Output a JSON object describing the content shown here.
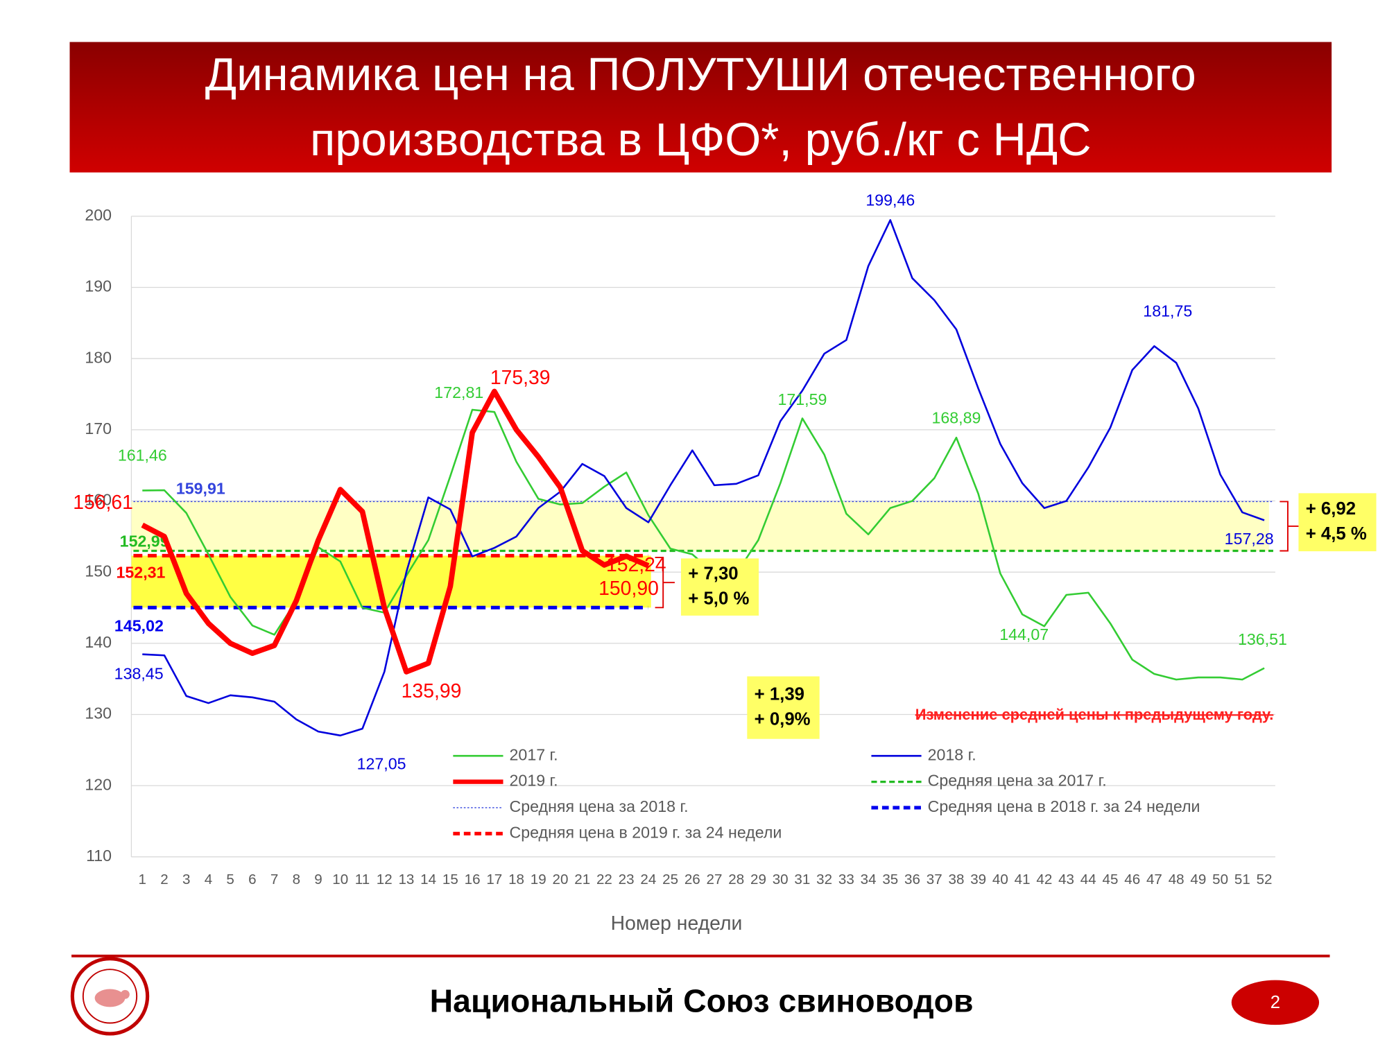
{
  "chart_data": {
    "type": "line",
    "title": [
      "Динамика цен на ПОЛУТУШИ отечественного",
      "производства в ЦФО*, руб./кг с НДС"
    ],
    "x_label": "Номер недели",
    "x": [
      1,
      2,
      3,
      4,
      5,
      6,
      7,
      8,
      9,
      10,
      11,
      12,
      13,
      14,
      15,
      16,
      17,
      18,
      19,
      20,
      21,
      22,
      23,
      24,
      25,
      26,
      27,
      28,
      29,
      30,
      31,
      32,
      33,
      34,
      35,
      36,
      37,
      38,
      39,
      40,
      41,
      42,
      43,
      44,
      45,
      46,
      47,
      48,
      49,
      50,
      51,
      52
    ],
    "xlim": [
      0.5,
      52.5
    ],
    "ylim": [
      110,
      200
    ],
    "yticks": [
      110,
      120,
      130,
      140,
      150,
      160,
      170,
      180,
      190,
      200
    ],
    "grid": true,
    "series": [
      {
        "name": "2017 г.",
        "color": "#33cc33",
        "style": "solid",
        "width": 2,
        "values": [
          161.46,
          161.5,
          158.3,
          152.5,
          146.5,
          142.5,
          141.2,
          146,
          153.5,
          151.5,
          145,
          144.3,
          149.5,
          154.5,
          163.5,
          172.81,
          172.5,
          165.5,
          160.3,
          159.5,
          159.7,
          162,
          164,
          158,
          153.3,
          152.5,
          149.8,
          149.8,
          154.5,
          162.5,
          171.59,
          166.5,
          158.2,
          155.3,
          159,
          160,
          163.2,
          168.89,
          161,
          149.8,
          144.07,
          142.4,
          146.8,
          147.1,
          142.8,
          137.7,
          135.7,
          134.9,
          135.2,
          135.2,
          134.9,
          136.51
        ],
        "value_labels": [
          "161,46",
          null,
          null,
          null,
          null,
          null,
          null,
          null,
          null,
          null,
          null,
          null,
          null,
          null,
          null,
          "172,81",
          null,
          null,
          null,
          null,
          null,
          null,
          null,
          null,
          null,
          null,
          null,
          null,
          null,
          null,
          "171,59",
          null,
          null,
          null,
          null,
          null,
          null,
          "168,89",
          null,
          null,
          "144,07",
          null,
          null,
          null,
          null,
          null,
          null,
          null,
          null,
          null,
          null,
          "136,51"
        ]
      },
      {
        "name": "2018 г.",
        "color": "#0000dd",
        "style": "solid",
        "width": 2,
        "values": [
          138.45,
          138.3,
          132.6,
          131.6,
          132.7,
          132.4,
          131.8,
          129.3,
          127.6,
          127.05,
          128,
          136,
          150,
          160.5,
          158.8,
          152.2,
          153.4,
          155,
          159,
          161.3,
          165.2,
          163.5,
          159,
          157,
          162.2,
          167.1,
          162.2,
          162.4,
          163.6,
          171.2,
          175.5,
          180.7,
          182.6,
          193,
          199.46,
          191.3,
          188.2,
          184.1,
          175.8,
          168,
          162.5,
          159,
          160,
          164.7,
          170.3,
          178.4,
          181.75,
          179.4,
          173,
          163.7,
          158.4,
          157.28
        ],
        "value_labels": [
          "138,45",
          null,
          null,
          null,
          null,
          null,
          null,
          null,
          null,
          "127,05",
          null,
          null,
          null,
          null,
          null,
          null,
          null,
          null,
          null,
          null,
          null,
          null,
          null,
          null,
          null,
          null,
          null,
          null,
          null,
          null,
          null,
          null,
          null,
          null,
          "199,46",
          null,
          null,
          null,
          null,
          null,
          null,
          null,
          null,
          null,
          null,
          null,
          "181,75",
          null,
          null,
          null,
          null,
          "157,28"
        ]
      },
      {
        "name": "2019 г.",
        "color": "#ff0000",
        "style": "solid",
        "width": 6,
        "values": [
          156.61,
          155,
          147,
          142.8,
          140,
          138.6,
          139.7,
          146,
          154.5,
          161.6,
          158.5,
          145,
          135.99,
          137.2,
          148,
          169.6,
          175.39,
          170,
          166.2,
          161.9,
          153,
          151,
          152.24,
          150.9,
          null,
          null,
          null,
          null,
          null,
          null,
          null,
          null,
          null,
          null,
          null,
          null,
          null,
          null,
          null,
          null,
          null,
          null,
          null,
          null,
          null,
          null,
          null,
          null,
          null,
          null,
          null,
          null
        ],
        "value_labels": [
          "156,61",
          null,
          null,
          null,
          null,
          null,
          null,
          null,
          null,
          null,
          null,
          null,
          "135,99",
          null,
          null,
          null,
          "175,39",
          null,
          null,
          null,
          null,
          null,
          "152,24",
          "150,90",
          null,
          null,
          null,
          null,
          null,
          null,
          null,
          null,
          null,
          null,
          null,
          null,
          null,
          null,
          null,
          null,
          null,
          null,
          null,
          null,
          null,
          null,
          null,
          null,
          null,
          null,
          null,
          null
        ]
      }
    ],
    "reference_lines": [
      {
        "name": "Средняя цена за 2017 г.",
        "color": "#22bb22",
        "style": "dashed",
        "width": 2.5,
        "value": 152.99,
        "value_label": "152,99",
        "x_range": [
          1,
          52
        ]
      },
      {
        "name": "Средняя цена за 2018 г.",
        "color": "#3344dd",
        "style": "dotted",
        "width": 1,
        "value": 159.91,
        "value_label": "159,91",
        "x_range": [
          1,
          52
        ]
      },
      {
        "name": "Средняя цена в 2018 г. за 24 недели",
        "color": "#0000ee",
        "style": "dashed",
        "width": 4,
        "value": 145.02,
        "value_label": "145,02",
        "x_range": [
          1,
          24
        ]
      },
      {
        "name": "Средняя цена в 2019 г. за 24 недели",
        "color": "#ff0000",
        "style": "dashed",
        "width": 4,
        "value": 152.31,
        "value_label": "152,31",
        "x_range": [
          1,
          24
        ]
      }
    ],
    "annotations": [
      {
        "lines": [
          "+ 7,30",
          "+ 5,0 %"
        ]
      },
      {
        "lines": [
          "+ 6,92",
          "+ 4,5 %"
        ]
      },
      {
        "lines": [
          "+ 1,39",
          "+ 0,9%"
        ]
      },
      {
        "lines": [
          "Изменение средней цены к предыдущему году."
        ]
      }
    ]
  },
  "footer": {
    "text": "Национальный Союз свиноводов",
    "page": 2
  }
}
